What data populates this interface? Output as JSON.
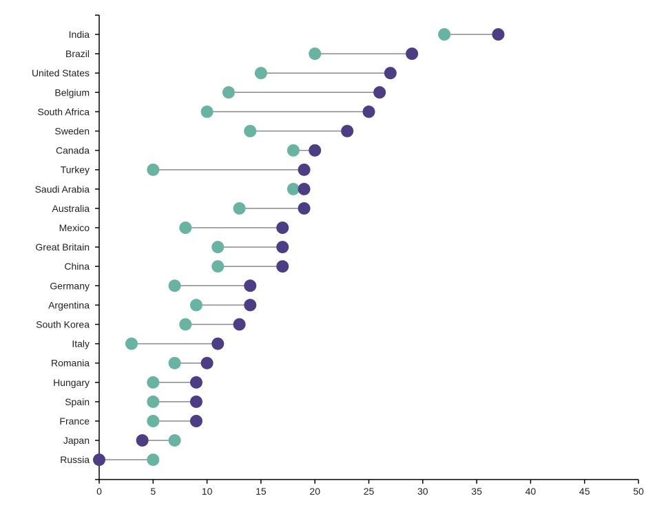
{
  "chart_data": {
    "type": "dumbbell",
    "title": "",
    "xlabel": "",
    "ylabel": "",
    "xlim": [
      0,
      50
    ],
    "x_ticks": [
      "0",
      "5",
      "10",
      "15",
      "20",
      "25",
      "30",
      "35",
      "40",
      "45",
      "50"
    ],
    "grid": false,
    "legend": "none",
    "colors": {
      "series_a": "#69b3a2",
      "series_b": "#4c3d84",
      "connector": "#888888",
      "axis": "#000000"
    },
    "categories": [
      "India",
      "Brazil",
      "United States",
      "Belgium",
      "South Africa",
      "Sweden",
      "Canada",
      "Turkey",
      "Saudi Arabia",
      "Australia",
      "Mexico",
      "Great Britain",
      "China",
      "Germany",
      "Argentina",
      "South Korea",
      "Italy",
      "Romania",
      "Hungary",
      "Spain",
      "France",
      "Japan",
      "Russia"
    ],
    "series": [
      {
        "values": [
          32,
          20,
          15,
          12,
          10,
          14,
          18,
          5,
          18,
          13,
          8,
          11,
          11,
          7,
          9,
          8,
          3,
          7,
          5,
          5,
          5,
          7,
          5
        ]
      },
      {
        "values": [
          37,
          29,
          27,
          26,
          25,
          23,
          20,
          19,
          19,
          19,
          17,
          17,
          17,
          14,
          14,
          13,
          11,
          10,
          9,
          9,
          9,
          4,
          0
        ]
      }
    ]
  }
}
